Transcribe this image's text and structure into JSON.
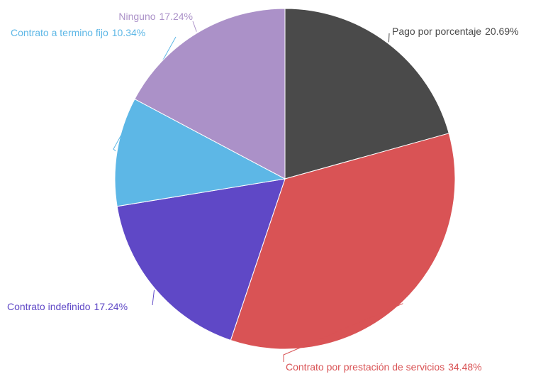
{
  "chart_data": {
    "type": "pie",
    "categories": [
      "Pago por porcentaje",
      "Contrato por prestación de servicios",
      "Contrato indefinido",
      "Contrato a termino fijo",
      "Ninguno"
    ],
    "values": [
      20.69,
      34.48,
      17.24,
      10.34,
      17.24
    ],
    "value_labels": [
      "20.69%",
      "34.48%",
      "17.24%",
      "10.34%",
      "17.24%"
    ],
    "colors": [
      "#4a4a4a",
      "#d95355",
      "#5f48c6",
      "#5db7e6",
      "#ab91c8"
    ]
  }
}
